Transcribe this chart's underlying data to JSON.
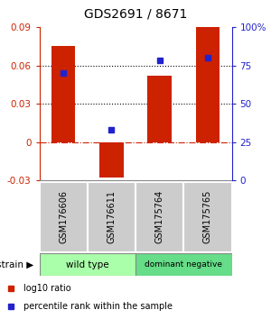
{
  "title": "GDS2691 / 8671",
  "samples": [
    "GSM176606",
    "GSM176611",
    "GSM175764",
    "GSM175765"
  ],
  "log10_ratio": [
    0.075,
    -0.028,
    0.052,
    0.09
  ],
  "percentile_rank": [
    70,
    33,
    78,
    80
  ],
  "bar_color": "#cc2200",
  "dot_color": "#2222cc",
  "ylim_left": [
    -0.03,
    0.09
  ],
  "yticks_left": [
    -0.03,
    0,
    0.03,
    0.06,
    0.09
  ],
  "ytick_labels_left": [
    "-0.03",
    "0",
    "0.03",
    "0.06",
    "0.09"
  ],
  "ylim_right": [
    0,
    100
  ],
  "yticks_right": [
    0,
    25,
    50,
    75,
    100
  ],
  "ytick_labels_right": [
    "0",
    "25",
    "50",
    "75",
    "100%"
  ],
  "hlines_dotted": [
    0.03,
    0.06
  ],
  "hline_zero_color": "#cc2200",
  "wt_color": "#aaffaa",
  "dn_color": "#66dd88",
  "gray_box_color": "#cccccc",
  "bg_color": "#ffffff",
  "axis_left_color": "#cc2200",
  "axis_right_color": "#2222cc",
  "legend": [
    {
      "color": "#cc2200",
      "label": "log10 ratio"
    },
    {
      "color": "#2222cc",
      "label": "percentile rank within the sample"
    }
  ]
}
